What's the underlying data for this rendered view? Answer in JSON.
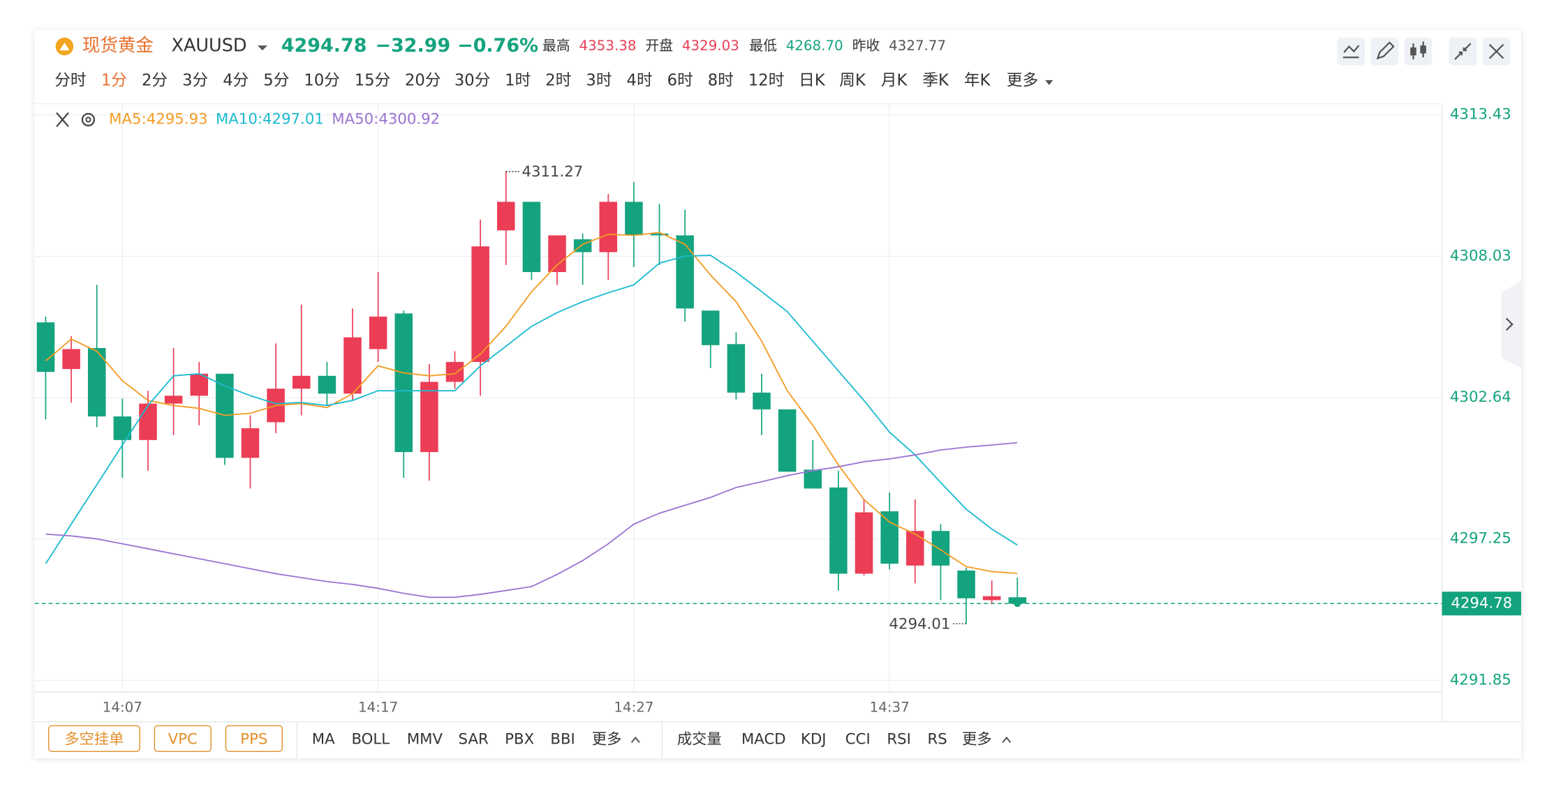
{
  "header": {
    "name": "现货黄金",
    "symbol": "XAUUSD",
    "price": "4294.78",
    "change": "−32.99",
    "change_pct": "−0.76%",
    "stats": [
      {
        "label": "最高",
        "value": "4353.38"
      },
      {
        "label": "开盘",
        "value": "4329.03"
      },
      {
        "label": "最低",
        "value": "4268.70"
      },
      {
        "label": "昨收",
        "value": "4327.77"
      }
    ]
  },
  "periods": [
    "分时",
    "1分",
    "2分",
    "3分",
    "4分",
    "5分",
    "10分",
    "15分",
    "20分",
    "30分",
    "1时",
    "2时",
    "3时",
    "4时",
    "6时",
    "8时",
    "12时",
    "日K",
    "周K",
    "月K",
    "季K",
    "年K",
    "更多"
  ],
  "toolbar": {
    "buttons": [
      "多空挂单",
      "VPC",
      "PPS"
    ],
    "main_indicators": [
      "MA",
      "BOLL",
      "MMV",
      "SAR",
      "PBX",
      "BBI",
      "更多"
    ],
    "sub_indicators": [
      "成交量",
      "MACD",
      "KDJ",
      "CCI",
      "RSI",
      "RS",
      "更多"
    ]
  },
  "chart_data": {
    "type": "candlestick",
    "categories": [
      null,
      null,
      null,
      "14:07",
      null,
      null,
      null,
      null,
      null,
      null,
      null,
      null,
      null,
      "14:17",
      null,
      null,
      null,
      null,
      null,
      null,
      null,
      null,
      null,
      "14:27",
      null,
      null,
      null,
      null,
      null,
      null,
      null,
      null,
      null,
      "14:37",
      null,
      null,
      null,
      null,
      null
    ],
    "open": [
      4305.51,
      4303.73,
      4304.53,
      4301.92,
      4301.02,
      4302.41,
      4302.71,
      4303.55,
      4300.34,
      4301.7,
      4302.98,
      4303.47,
      4302.79,
      4304.49,
      4305.85,
      4300.56,
      4303.24,
      4304.0,
      4309.02,
      4310.11,
      4307.43,
      4308.68,
      4308.19,
      4310.11,
      4308.9,
      4308.83,
      4305.96,
      4304.68,
      4302.83,
      4302.19,
      4299.89,
      4299.21,
      4295.92,
      4298.3,
      4296.23,
      4297.55,
      4296.04,
      4294.91,
      4295.02
    ],
    "high": [
      4305.73,
      4304.98,
      4306.94,
      4302.6,
      4302.9,
      4304.53,
      4304.0,
      4303.55,
      4301.96,
      4304.71,
      4306.19,
      4304.0,
      4306.04,
      4307.43,
      4305.96,
      4303.92,
      4304.41,
      4309.43,
      4311.27,
      4310.11,
      4308.83,
      4308.9,
      4310.41,
      4310.86,
      4310.03,
      4309.81,
      4305.96,
      4305.13,
      4303.55,
      4302.19,
      4301.02,
      4299.85,
      4298.75,
      4299.02,
      4298.75,
      4297.81,
      4296.15,
      4295.66,
      4295.77
    ],
    "low": [
      4301.81,
      4302.45,
      4301.51,
      4299.58,
      4299.85,
      4301.21,
      4301.58,
      4300.07,
      4299.17,
      4301.28,
      4301.96,
      4302.34,
      4302.56,
      4304.0,
      4299.58,
      4299.47,
      4302.98,
      4302.71,
      4307.7,
      4307.13,
      4306.94,
      4306.94,
      4307.13,
      4307.62,
      4307.7,
      4305.54,
      4303.77,
      4302.56,
      4301.21,
      4299.81,
      4299.17,
      4295.28,
      4295.85,
      4296.08,
      4295.55,
      4294.91,
      4294.01,
      4294.78,
      4294.78
    ],
    "close": [
      4303.62,
      4304.49,
      4301.92,
      4301.02,
      4302.41,
      4302.71,
      4303.55,
      4300.34,
      4301.47,
      4302.98,
      4303.47,
      4302.79,
      4304.94,
      4305.73,
      4300.56,
      4303.24,
      4304.0,
      4308.41,
      4310.11,
      4307.43,
      4308.83,
      4308.19,
      4310.11,
      4308.83,
      4308.83,
      4306.04,
      4304.64,
      4302.83,
      4302.19,
      4299.81,
      4299.17,
      4295.92,
      4298.26,
      4296.3,
      4297.55,
      4296.23,
      4294.98,
      4295.06,
      4294.78
    ],
    "up_color": "#eb3d55",
    "down_color": "#14a37f",
    "series": [
      {
        "name": "MA5:4295.93",
        "color": "#f39c24",
        "values": [
          4304.04,
          4304.87,
          4304.41,
          4303.28,
          4302.53,
          4302.34,
          4302.23,
          4301.96,
          4302.04,
          4302.34,
          4302.41,
          4302.26,
          4302.79,
          4303.85,
          4303.58,
          4303.47,
          4303.55,
          4304.3,
          4305.36,
          4306.68,
          4307.7,
          4308.49,
          4308.87,
          4308.83,
          4308.94,
          4308.49,
          4307.32,
          4306.3,
          4304.79,
          4302.9,
          4301.58,
          4300.07,
          4298.75,
          4297.89,
          4297.43,
          4296.83,
          4296.19,
          4296.0,
          4295.93
        ]
      },
      {
        "name": "MA10:4297.01",
        "color": "#1cbbd0",
        "values": [
          4296.3,
          4297.81,
          4299.32,
          4300.83,
          4302.34,
          4303.47,
          4303.55,
          4303.09,
          4302.71,
          4302.41,
          4302.45,
          4302.34,
          4302.53,
          4302.9,
          4302.9,
          4302.9,
          4302.9,
          4303.85,
          4304.6,
          4305.36,
          4305.88,
          4306.3,
          4306.64,
          4306.94,
          4307.77,
          4308.04,
          4308.07,
          4307.43,
          4306.68,
          4305.92,
          4304.79,
          4303.66,
          4302.53,
          4301.32,
          4300.45,
          4299.4,
          4298.38,
          4297.62,
          4297.01
        ]
      },
      {
        "name": "MA50:4300.92",
        "color": "#9a74d2",
        "values": [
          4297.43,
          4297.36,
          4297.25,
          4297.06,
          4296.87,
          4296.68,
          4296.49,
          4296.3,
          4296.11,
          4295.92,
          4295.77,
          4295.62,
          4295.51,
          4295.36,
          4295.17,
          4295.02,
          4295.02,
          4295.13,
          4295.28,
          4295.43,
          4295.89,
          4296.42,
          4297.06,
          4297.81,
          4298.23,
          4298.53,
          4298.83,
          4299.21,
          4299.43,
          4299.66,
          4299.85,
          4300.0,
          4300.19,
          4300.3,
          4300.45,
          4300.64,
          4300.75,
          4300.83,
          4300.92
        ]
      }
    ],
    "ylim": [
      4291.4,
      4313.85
    ],
    "yticks": [
      4313.43,
      4308.03,
      4302.64,
      4297.25,
      4291.85
    ],
    "annotations": [
      {
        "value": 4311.27
      },
      {
        "value": 4294.01
      }
    ],
    "last_price": 4294.78,
    "last_price_color": "#14a37f",
    "grid": true
  }
}
